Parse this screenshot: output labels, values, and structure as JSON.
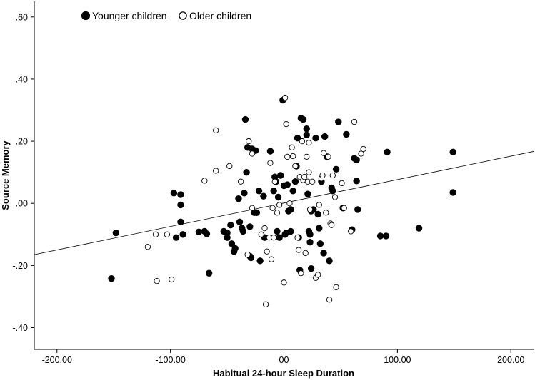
{
  "chart_data": {
    "type": "scatter",
    "xlabel": "Habitual 24-hour Sleep Duration",
    "ylabel": "Source Memory",
    "xlim": [
      -220,
      220
    ],
    "ylim": [
      -0.47,
      0.65
    ],
    "x_ticks": [
      -200,
      -100,
      0,
      100,
      200
    ],
    "x_tick_labels": [
      "-200.00",
      "-100.00",
      "00",
      "100.00",
      "200.00"
    ],
    "y_ticks": [
      -0.4,
      -0.2,
      0,
      0.2,
      0.4,
      0.6
    ],
    "y_tick_labels": [
      "-.40",
      "-.20",
      ".00",
      ".20",
      ".40",
      ".60"
    ],
    "legend_position": "top-left",
    "grid": false,
    "fit_line": {
      "x": [
        -220,
        220
      ],
      "y": [
        -0.165,
        0.167
      ]
    },
    "series": [
      {
        "name": "Younger children",
        "marker": "filled-circle",
        "color": "#000000",
        "points": [
          [
            -152,
            -0.242
          ],
          [
            -148,
            -0.095
          ],
          [
            -97,
            0.033
          ],
          [
            -95,
            -0.11
          ],
          [
            -91,
            0.028
          ],
          [
            -91,
            -0.005
          ],
          [
            -91,
            -0.06
          ],
          [
            -89,
            -0.1
          ],
          [
            -75,
            -0.092
          ],
          [
            -70,
            -0.09
          ],
          [
            -68,
            -0.098
          ],
          [
            -66,
            -0.225
          ],
          [
            -53,
            -0.09
          ],
          [
            -50,
            -0.095
          ],
          [
            -50,
            -0.11
          ],
          [
            -47,
            -0.07
          ],
          [
            -46,
            -0.13
          ],
          [
            -44,
            -0.155
          ],
          [
            -43,
            -0.145
          ],
          [
            -40,
            0.015
          ],
          [
            -39,
            -0.06
          ],
          [
            -37,
            -0.08
          ],
          [
            -36,
            -0.09
          ],
          [
            -35,
            0.033
          ],
          [
            -34,
            0.27
          ],
          [
            -33,
            0.1
          ],
          [
            -32,
            0.18
          ],
          [
            -30,
            -0.075
          ],
          [
            -30,
            -0.17
          ],
          [
            -29,
            -0.175
          ],
          [
            -28,
            0.175
          ],
          [
            -26,
            -0.03
          ],
          [
            -25,
            0.17
          ],
          [
            -24,
            -0.03
          ],
          [
            -22,
            0.04
          ],
          [
            -21,
            -0.185
          ],
          [
            -18,
            0.023
          ],
          [
            -17,
            -0.11
          ],
          [
            -12,
            0.168
          ],
          [
            -9,
            0.04
          ],
          [
            -8,
            0.085
          ],
          [
            -7,
            0.07
          ],
          [
            -6,
            -0.09
          ],
          [
            -5,
            0.02
          ],
          [
            -4,
            -0.11
          ],
          [
            -3,
            0.09
          ],
          [
            -1,
            0.332
          ],
          [
            0,
            0.057
          ],
          [
            1,
            -0.1
          ],
          [
            2,
            -0.095
          ],
          [
            3,
            0.06
          ],
          [
            4,
            -0.025
          ],
          [
            6,
            -0.02
          ],
          [
            6,
            -0.09
          ],
          [
            8,
            0.04
          ],
          [
            10,
            0.07
          ],
          [
            11,
            0.12
          ],
          [
            12,
            0.21
          ],
          [
            13,
            -0.11
          ],
          [
            14,
            -0.215
          ],
          [
            15,
            0.274
          ],
          [
            17,
            0.27
          ],
          [
            20,
            0.24
          ],
          [
            20,
            0.22
          ],
          [
            21,
            0.03
          ],
          [
            22,
            -0.09
          ],
          [
            23,
            -0.1
          ],
          [
            23,
            -0.125
          ],
          [
            24,
            -0.21
          ],
          [
            24,
            -0.025
          ],
          [
            26,
            -0.02
          ],
          [
            28,
            0.21
          ],
          [
            30,
            -0.035
          ],
          [
            31,
            -0.08
          ],
          [
            32,
            -0.13
          ],
          [
            33,
            0.07
          ],
          [
            35,
            -0.16
          ],
          [
            36,
            0.215
          ],
          [
            38,
            0.15
          ],
          [
            40,
            -0.185
          ],
          [
            42,
            0.05
          ],
          [
            43,
            0.04
          ],
          [
            46,
            0.11
          ],
          [
            48,
            0.262
          ],
          [
            52,
            -0.015
          ],
          [
            55,
            0.222
          ],
          [
            60,
            -0.085
          ],
          [
            62,
            0.145
          ],
          [
            64,
            0.14
          ],
          [
            64,
            0.072
          ],
          [
            65,
            -0.02
          ],
          [
            85,
            -0.105
          ],
          [
            90,
            -0.105
          ],
          [
            91,
            0.165
          ],
          [
            119,
            -0.08
          ],
          [
            149,
            0.165
          ],
          [
            149,
            0.035
          ]
        ]
      },
      {
        "name": "Older children",
        "marker": "hollow-circle",
        "color": "#000000",
        "points": [
          [
            -120,
            -0.14
          ],
          [
            -113,
            -0.1
          ],
          [
            -112,
            -0.25
          ],
          [
            -103,
            -0.1
          ],
          [
            -99,
            -0.245
          ],
          [
            -70,
            0.073
          ],
          [
            -60,
            0.235
          ],
          [
            -60,
            0.105
          ],
          [
            -48,
            0.12
          ],
          [
            -38,
            0.07
          ],
          [
            -32,
            -0.165
          ],
          [
            -31,
            0.2
          ],
          [
            -28,
            0.16
          ],
          [
            -28,
            -0.015
          ],
          [
            -20,
            -0.1
          ],
          [
            -17,
            -0.08
          ],
          [
            -16,
            -0.325
          ],
          [
            -15,
            -0.155
          ],
          [
            -13,
            -0.11
          ],
          [
            -12,
            0.13
          ],
          [
            -11,
            -0.18
          ],
          [
            -10,
            -0.015
          ],
          [
            -9,
            -0.11
          ],
          [
            -8,
            0.07
          ],
          [
            -6,
            -0.03
          ],
          [
            -4,
            -0.005
          ],
          [
            0,
            -0.255
          ],
          [
            1,
            0.34
          ],
          [
            2,
            0.255
          ],
          [
            3,
            0.15
          ],
          [
            5,
            0.0
          ],
          [
            7,
            0.18
          ],
          [
            8,
            0.152
          ],
          [
            10,
            0.12
          ],
          [
            12,
            -0.11
          ],
          [
            13,
            -0.15
          ],
          [
            14,
            0.085
          ],
          [
            15,
            -0.225
          ],
          [
            16,
            0.2
          ],
          [
            17,
            0.075
          ],
          [
            18,
            0.085
          ],
          [
            19,
            -0.16
          ],
          [
            20,
            0.15
          ],
          [
            21,
            0.07
          ],
          [
            22,
            0.1
          ],
          [
            22,
            0.195
          ],
          [
            23,
            -0.02
          ],
          [
            25,
            0.07
          ],
          [
            28,
            -0.24
          ],
          [
            30,
            -0.23
          ],
          [
            31,
            -0.005
          ],
          [
            33,
            0.08
          ],
          [
            34,
            0.09
          ],
          [
            35,
            0.162
          ],
          [
            37,
            -0.03
          ],
          [
            39,
            0.15
          ],
          [
            40,
            -0.31
          ],
          [
            41,
            -0.065
          ],
          [
            42,
            -0.07
          ],
          [
            43,
            0.09
          ],
          [
            45,
            0.02
          ],
          [
            46,
            -0.27
          ],
          [
            51,
            0.065
          ],
          [
            53,
            -0.015
          ],
          [
            59,
            -0.09
          ],
          [
            62,
            0.262
          ],
          [
            68,
            0.16
          ],
          [
            70,
            0.175
          ]
        ]
      }
    ]
  }
}
